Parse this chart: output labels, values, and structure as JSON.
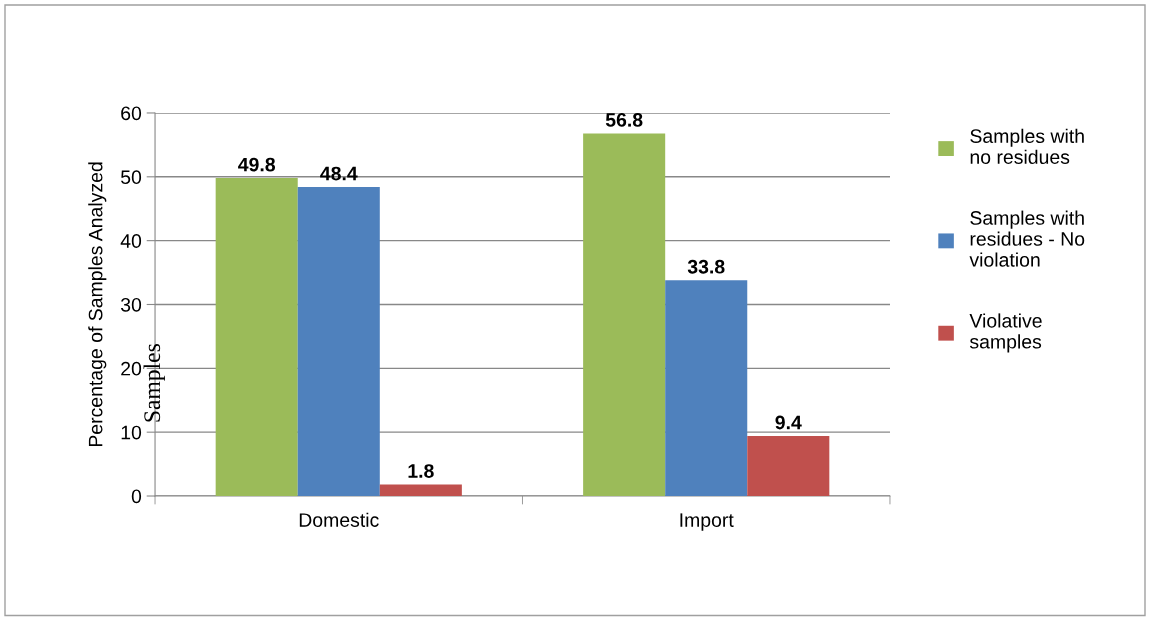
{
  "chart_data": {
    "type": "bar",
    "ylabel": "Percentage of Samples Analyzed",
    "categories": [
      "Domestic",
      "Import"
    ],
    "series": [
      {
        "name": "Samples with\nno residues",
        "color": "#9bbb59",
        "values": [
          49.8,
          56.8
        ]
      },
      {
        "name": "Samples with\nresidues - No\nviolation",
        "color": "#4f81bd",
        "values": [
          48.4,
          33.8
        ]
      },
      {
        "name": "Violative\nsamples",
        "color": "#c0504d",
        "values": [
          1.8,
          9.4
        ]
      }
    ],
    "ylim": [
      0,
      60
    ],
    "yticks": [
      0,
      10,
      20,
      30,
      40,
      50,
      60
    ],
    "grid": "y",
    "legend": "right",
    "data_labels": true,
    "annotations": [
      "Samples"
    ]
  }
}
